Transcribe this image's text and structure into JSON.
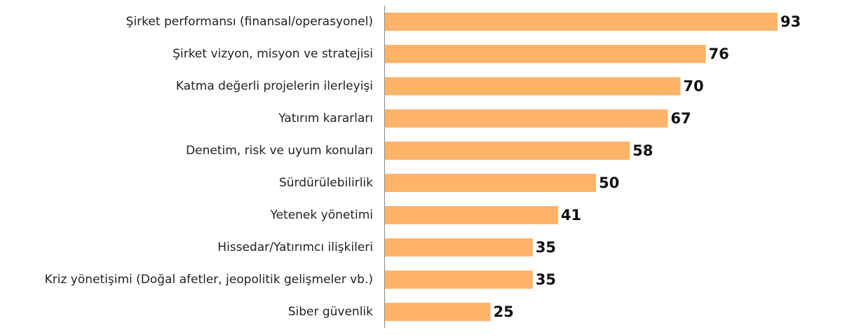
{
  "chart_data": {
    "type": "bar",
    "orientation": "horizontal",
    "categories": [
      "Şirket performansı (finansal/operasyonel)",
      "Şirket vizyon, misyon ve stratejisi",
      "Katma değerli projelerin ilerleyişi",
      "Yatırım kararları",
      "Denetim, risk ve uyum konuları",
      "Sürdürülebilirlik",
      "Yetenek yönetimi",
      "Hissedar/Yatırımcı ilişkileri",
      "Kriz yönetişimi (Doğal afetler, jeopolitik gelişmeler vb.)",
      "Siber güvenlik"
    ],
    "values": [
      93,
      76,
      70,
      67,
      58,
      50,
      41,
      35,
      35,
      25
    ],
    "color": "#ffb469"
  }
}
